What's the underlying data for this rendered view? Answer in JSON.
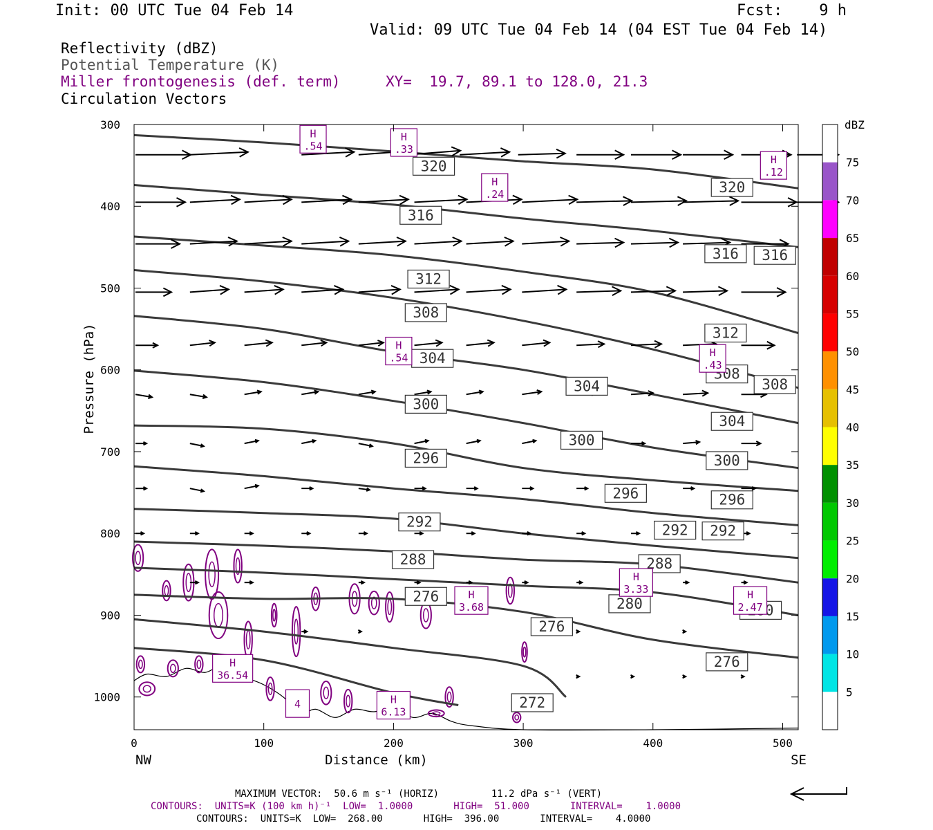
{
  "header": {
    "init": "Init: 00 UTC Tue 04 Feb 14",
    "fcst": "Fcst:    9 h",
    "valid": "Valid: 09 UTC Tue 04 Feb 14 (04 EST Tue 04 Feb 14)"
  },
  "legend": {
    "line1": "Reflectivity (dBZ)",
    "line2": "Potential Temperature (K)",
    "line3": "Miller frontogenesis (def. term)",
    "xy": "XY=  19.7, 89.1 to 128.0, 21.3",
    "line4": "Circulation Vectors"
  },
  "footer": {
    "line1": "MAXIMUM VECTOR:  50.6 m s⁻¹ (HORIZ)         11.2 dPa s⁻¹ (VERT)",
    "line2": "CONTOURS:  UNITS=K (100 km h)⁻¹  LOW=  1.0000       HIGH=  51.000       INTERVAL=    1.0000",
    "line3": "CONTOURS:  UNITS=K  LOW=  268.00       HIGH=  396.00       INTERVAL=    4.0000"
  },
  "colors": {
    "theta": "#3a3a3a",
    "fronto": "#800080",
    "vector": "#000000"
  },
  "chart_data": {
    "type": "cross-section",
    "xlabel": "Distance (km)",
    "ylabel": "Pressure (hPa)",
    "xlim": [
      0,
      512
    ],
    "ylim": [
      300,
      1040
    ],
    "x_ticks": [
      0,
      100,
      200,
      300,
      400,
      500
    ],
    "y_ticks": [
      300,
      400,
      500,
      600,
      700,
      800,
      900,
      1000
    ],
    "x_end_labels": {
      "left": "NW",
      "right": "SE"
    },
    "colorbar": {
      "title": "dBZ",
      "tick_labels": [
        "5",
        "10",
        "15",
        "20",
        "25",
        "30",
        "35",
        "40",
        "45",
        "50",
        "55",
        "60",
        "65",
        "70",
        "75"
      ],
      "colors": [
        "#ffffff",
        "#00e5e5",
        "#0099ee",
        "#1515e6",
        "#00ee00",
        "#00c800",
        "#009000",
        "#ffff00",
        "#e6c000",
        "#ff9000",
        "#ff0000",
        "#d60000",
        "#c00000",
        "#ff00ff",
        "#9955c9",
        "#ffffff"
      ]
    },
    "theta_contours": [
      {
        "value": 320,
        "points": [
          [
            0,
            313
          ],
          [
            100,
            322
          ],
          [
            200,
            333
          ],
          [
            300,
            345
          ],
          [
            400,
            355
          ],
          [
            512,
            378
          ]
        ]
      },
      {
        "value": 316,
        "points": [
          [
            0,
            374
          ],
          [
            100,
            386
          ],
          [
            200,
            398
          ],
          [
            300,
            415
          ],
          [
            400,
            430
          ],
          [
            512,
            450
          ]
        ]
      },
      {
        "value": 312,
        "points": [
          [
            0,
            437
          ],
          [
            100,
            448
          ],
          [
            200,
            460
          ],
          [
            300,
            480
          ],
          [
            400,
            505
          ],
          [
            512,
            555
          ]
        ]
      },
      {
        "value": 308,
        "points": [
          [
            0,
            478
          ],
          [
            100,
            492
          ],
          [
            200,
            512
          ],
          [
            300,
            540
          ],
          [
            400,
            575
          ],
          [
            512,
            622
          ]
        ]
      },
      {
        "value": 304,
        "points": [
          [
            0,
            534
          ],
          [
            100,
            550
          ],
          [
            200,
            578
          ],
          [
            300,
            600
          ],
          [
            400,
            630
          ],
          [
            512,
            665
          ]
        ]
      },
      {
        "value": 300,
        "points": [
          [
            0,
            601
          ],
          [
            100,
            615
          ],
          [
            200,
            638
          ],
          [
            300,
            665
          ],
          [
            400,
            695
          ],
          [
            512,
            720
          ]
        ]
      },
      {
        "value": 296,
        "points": [
          [
            0,
            668
          ],
          [
            100,
            672
          ],
          [
            200,
            690
          ],
          [
            300,
            720
          ],
          [
            400,
            735
          ],
          [
            512,
            748
          ]
        ]
      },
      {
        "value": 292,
        "points": [
          [
            0,
            718
          ],
          [
            100,
            730
          ],
          [
            200,
            745
          ],
          [
            300,
            758
          ],
          [
            400,
            775
          ],
          [
            512,
            790
          ]
        ]
      },
      {
        "value": 288,
        "points": [
          [
            0,
            770
          ],
          [
            100,
            775
          ],
          [
            200,
            782
          ],
          [
            300,
            800
          ],
          [
            400,
            815
          ],
          [
            512,
            830
          ]
        ]
      },
      {
        "value": 284,
        "points": [
          [
            0,
            810
          ],
          [
            100,
            815
          ],
          [
            200,
            822
          ],
          [
            300,
            832
          ],
          [
            400,
            838
          ],
          [
            512,
            860
          ]
        ]
      },
      {
        "value": 280,
        "points": [
          [
            0,
            842
          ],
          [
            100,
            848
          ],
          [
            200,
            856
          ],
          [
            300,
            864
          ],
          [
            400,
            872
          ],
          [
            512,
            900
          ]
        ]
      },
      {
        "value": 276,
        "points": [
          [
            0,
            875
          ],
          [
            100,
            880
          ],
          [
            200,
            880
          ],
          [
            300,
            896
          ],
          [
            400,
            930
          ],
          [
            512,
            952
          ]
        ]
      },
      {
        "value": 272,
        "points": [
          [
            0,
            905
          ],
          [
            100,
            920
          ],
          [
            200,
            940
          ],
          [
            300,
            962
          ],
          [
            333,
            1000
          ]
        ]
      },
      {
        "value": 268,
        "points": [
          [
            0,
            940
          ],
          [
            100,
            955
          ],
          [
            200,
            995
          ],
          [
            250,
            1010
          ]
        ]
      }
    ],
    "theta_labels": [
      {
        "text": "320",
        "x": 231,
        "p": 351
      },
      {
        "text": "320",
        "x": 461,
        "p": 377
      },
      {
        "text": "316",
        "x": 221,
        "p": 411
      },
      {
        "text": "316",
        "x": 456,
        "p": 458
      },
      {
        "text": "316",
        "x": 494,
        "p": 460
      },
      {
        "text": "312",
        "x": 227,
        "p": 489
      },
      {
        "text": "312",
        "x": 456,
        "p": 555
      },
      {
        "text": "308",
        "x": 225,
        "p": 530
      },
      {
        "text": "308",
        "x": 457,
        "p": 605
      },
      {
        "text": "308",
        "x": 494,
        "p": 618
      },
      {
        "text": "304",
        "x": 230,
        "p": 586
      },
      {
        "text": "304",
        "x": 349,
        "p": 620
      },
      {
        "text": "304",
        "x": 461,
        "p": 663
      },
      {
        "text": "300",
        "x": 225,
        "p": 642
      },
      {
        "text": "300",
        "x": 345,
        "p": 686
      },
      {
        "text": "300",
        "x": 457,
        "p": 711
      },
      {
        "text": "296",
        "x": 225,
        "p": 708
      },
      {
        "text": "296",
        "x": 379,
        "p": 751
      },
      {
        "text": "296",
        "x": 461,
        "p": 759
      },
      {
        "text": "292",
        "x": 220,
        "p": 786
      },
      {
        "text": "292",
        "x": 417,
        "p": 796
      },
      {
        "text": "292",
        "x": 454,
        "p": 797
      },
      {
        "text": "288",
        "x": 215,
        "p": 832
      },
      {
        "text": "288",
        "x": 405,
        "p": 837
      },
      {
        "text": "280",
        "x": 382,
        "p": 886
      },
      {
        "text": "280",
        "x": 483,
        "p": 894
      },
      {
        "text": "276",
        "x": 225,
        "p": 877
      },
      {
        "text": "276",
        "x": 322,
        "p": 914
      },
      {
        "text": "276",
        "x": 457,
        "p": 957
      },
      {
        "text": "272",
        "x": 307,
        "p": 1007
      }
    ],
    "fronto_maxima": [
      {
        "label": "H",
        "value": ".54",
        "x": 138,
        "p": 318
      },
      {
        "label": "H",
        "value": ".33",
        "x": 208,
        "p": 322
      },
      {
        "label": "H",
        "value": ".24",
        "x": 278,
        "p": 377
      },
      {
        "label": "H",
        "value": ".12",
        "x": 493,
        "p": 350
      },
      {
        "label": "H",
        "value": ".54",
        "x": 204,
        "p": 577
      },
      {
        "label": "H",
        "value": ".43",
        "x": 446,
        "p": 586
      },
      {
        "label": "H",
        "value": "3.68",
        "x": 260,
        "p": 882
      },
      {
        "label": "H",
        "value": "3.33",
        "x": 387,
        "p": 860
      },
      {
        "label": "H",
        "value": "2.47",
        "x": 475,
        "p": 882
      },
      {
        "label": "H",
        "value": "36.54",
        "x": 76,
        "p": 965
      },
      {
        "label": "H",
        "value": "6.13",
        "x": 200,
        "p": 1010
      },
      {
        "label": "",
        "value": "4",
        "x": 126,
        "p": 1008
      }
    ],
    "vectors": [
      {
        "p": 337,
        "x": [
          0,
          42,
          128,
          172,
          210,
          250,
          295,
          340,
          382,
          422,
          467,
          510
        ],
        "u": [
          40,
          42,
          38,
          40,
          38,
          36,
          34,
          34,
          36,
          36,
          36,
          30
        ],
        "w": [
          0,
          2,
          2,
          3,
          3,
          2,
          1,
          0,
          0,
          0,
          0,
          0
        ]
      },
      {
        "p": 395,
        "x": [
          0,
          42,
          84,
          128,
          172,
          215,
          255,
          298,
          340,
          382,
          422,
          467,
          510
        ],
        "u": [
          36,
          36,
          34,
          36,
          36,
          38,
          40,
          40,
          40,
          40,
          40,
          40,
          30
        ],
        "w": [
          0,
          2,
          2,
          2,
          2,
          2,
          2,
          2,
          1,
          1,
          1,
          0,
          0
        ]
      },
      {
        "p": 446,
        "x": [
          0,
          42,
          84,
          128,
          172,
          215,
          255,
          298,
          340,
          382,
          422,
          467
        ],
        "u": [
          32,
          34,
          34,
          34,
          34,
          34,
          34,
          34,
          34,
          34,
          34,
          34
        ],
        "w": [
          0,
          2,
          2,
          2,
          2,
          2,
          2,
          2,
          1,
          1,
          1,
          0
        ]
      },
      {
        "p": 505,
        "x": [
          0,
          42,
          84,
          128,
          172,
          215,
          255,
          298,
          340,
          382,
          422,
          467
        ],
        "u": [
          26,
          28,
          28,
          30,
          30,
          32,
          32,
          32,
          32,
          32,
          32,
          32
        ],
        "w": [
          0,
          2,
          2,
          2,
          2,
          2,
          2,
          2,
          1,
          1,
          1,
          0
        ]
      },
      {
        "p": 570,
        "x": [
          0,
          42,
          84,
          128,
          172,
          215,
          255,
          298,
          340,
          382,
          422,
          467
        ],
        "u": [
          16,
          18,
          20,
          18,
          18,
          20,
          20,
          20,
          20,
          22,
          24,
          24
        ],
        "w": [
          0,
          2,
          2,
          2,
          2,
          2,
          2,
          2,
          1,
          1,
          1,
          0
        ]
      },
      {
        "p": 630,
        "x": [
          0,
          42,
          84,
          128,
          172,
          215,
          255,
          298,
          340,
          382,
          422,
          467
        ],
        "u": [
          12,
          12,
          12,
          12,
          12,
          12,
          12,
          14,
          14,
          16,
          18,
          18
        ],
        "w": [
          -2,
          -2,
          2,
          2,
          2,
          2,
          2,
          2,
          1,
          1,
          1,
          0
        ]
      },
      {
        "p": 690,
        "x": [
          0,
          42,
          84,
          128,
          172,
          215,
          255,
          298,
          340,
          382,
          422,
          467
        ],
        "u": [
          8,
          10,
          10,
          10,
          10,
          10,
          10,
          10,
          10,
          10,
          12,
          14
        ],
        "w": [
          0,
          -2,
          2,
          2,
          -2,
          2,
          2,
          2,
          0,
          0,
          1,
          0
        ]
      },
      {
        "p": 745,
        "x": [
          0,
          42,
          84,
          128,
          172,
          215,
          255,
          298,
          340,
          382,
          422,
          467
        ],
        "u": [
          8,
          10,
          10,
          8,
          8,
          8,
          8,
          8,
          8,
          8,
          8,
          10
        ],
        "w": [
          0,
          -2,
          2,
          0,
          -1,
          0,
          0,
          0,
          0,
          0,
          0,
          0
        ]
      },
      {
        "p": 800,
        "x": [
          0,
          42,
          84,
          128,
          172,
          215,
          255,
          298,
          340,
          382,
          422,
          467
        ],
        "u": [
          6,
          6,
          6,
          6,
          6,
          6,
          6,
          6,
          6,
          6,
          6,
          6
        ],
        "w": [
          0,
          0,
          0,
          0,
          0,
          0,
          0,
          0,
          0,
          0,
          0,
          0
        ]
      },
      {
        "p": 860,
        "x": [
          42,
          84,
          172,
          215,
          255,
          298,
          340,
          382,
          422,
          467
        ],
        "u": [
          6,
          6,
          4,
          4,
          4,
          4,
          4,
          4,
          4,
          4
        ],
        "w": [
          0,
          0,
          0,
          0,
          0,
          0,
          0,
          0,
          0,
          0
        ]
      },
      {
        "p": 920,
        "x": [
          128,
          172,
          340,
          422
        ],
        "u": [
          4,
          2,
          2,
          2
        ],
        "w": [
          0,
          0,
          0,
          0
        ]
      },
      {
        "p": 975,
        "x": [
          340,
          382,
          422,
          467
        ],
        "u": [
          2,
          2,
          2,
          2
        ],
        "w": [
          0,
          0,
          0,
          0
        ]
      }
    ],
    "terrain": [
      [
        0,
        980
      ],
      [
        10,
        972
      ],
      [
        25,
        975
      ],
      [
        40,
        965
      ],
      [
        55,
        970
      ],
      [
        70,
        960
      ],
      [
        85,
        975
      ],
      [
        100,
        985
      ],
      [
        115,
        1000
      ],
      [
        128,
        1020
      ],
      [
        140,
        1015
      ],
      [
        155,
        1025
      ],
      [
        170,
        1015
      ],
      [
        185,
        1018
      ],
      [
        200,
        1012
      ],
      [
        215,
        1025
      ],
      [
        230,
        1020
      ],
      [
        245,
        1030
      ],
      [
        260,
        1035
      ],
      [
        300,
        1040
      ],
      [
        400,
        1040
      ],
      [
        512,
        1038
      ]
    ],
    "reference_vector": "horizontal arrow"
  }
}
